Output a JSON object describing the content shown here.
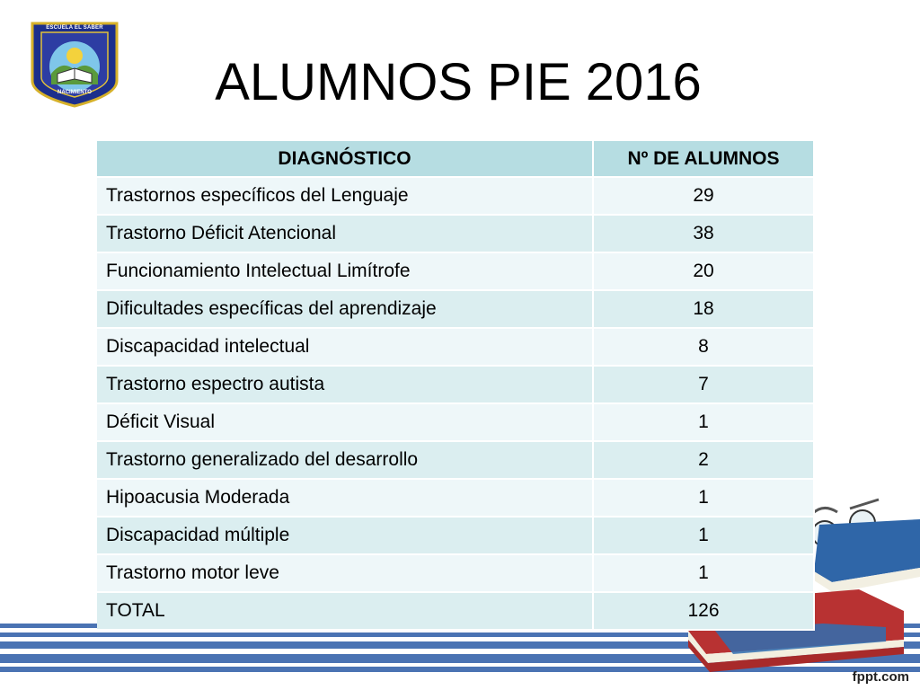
{
  "logo": {
    "top_text": "ESCUELA EL SABER",
    "bottom_text": "NACIMIENTO"
  },
  "title": "ALUMNOS PIE 2016",
  "table": {
    "headers": [
      "DIAGNÓSTICO",
      "Nº DE ALUMNOS"
    ],
    "rows": [
      {
        "diagnosis": "Trastornos específicos del Lenguaje",
        "count": "29"
      },
      {
        "diagnosis": "Trastorno Déficit Atencional",
        "count": "38"
      },
      {
        "diagnosis": "Funcionamiento Intelectual Limítrofe",
        "count": "20"
      },
      {
        "diagnosis": "Dificultades específicas del aprendizaje",
        "count": "18"
      },
      {
        "diagnosis": "Discapacidad intelectual",
        "count": "8"
      },
      {
        "diagnosis": "Trastorno espectro autista",
        "count": "7"
      },
      {
        "diagnosis": "Déficit Visual",
        "count": "1"
      },
      {
        "diagnosis": "Trastorno generalizado del desarrollo",
        "count": "2"
      },
      {
        "diagnosis": "Hipoacusia Moderada",
        "count": "1"
      },
      {
        "diagnosis": "Discapacidad múltiple",
        "count": "1"
      },
      {
        "diagnosis": "Trastorno motor leve",
        "count": "1"
      },
      {
        "diagnosis": "TOTAL",
        "count": "126"
      }
    ]
  },
  "footer": "fppt.com",
  "colors": {
    "header_bg": "#b6dde2",
    "row_bg_a": "#eef7f9",
    "row_bg_b": "#dbeef0",
    "stripe_blue": "#4a73b3"
  }
}
